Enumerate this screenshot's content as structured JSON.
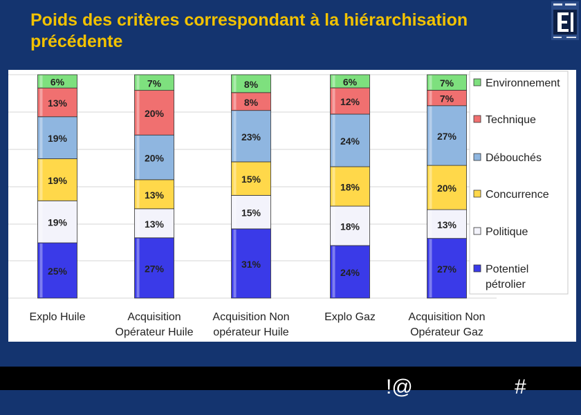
{
  "slide": {
    "title": "Poids des critères correspondant à la hiérarchisation précédente",
    "footer_left": "!@",
    "footer_right": "#"
  },
  "colors": {
    "background": "#14346f",
    "title": "#f2c200",
    "footer_bar": "#000000"
  },
  "chart_data": {
    "type": "bar",
    "stacked": true,
    "categories": [
      [
        "Explo Huile"
      ],
      [
        "Acquisition",
        "Opérateur Huile"
      ],
      [
        "Acquisition Non",
        "opérateur Huile"
      ],
      [
        "Explo Gaz"
      ],
      [
        "Acquisition Non",
        "Opérateur Gaz"
      ]
    ],
    "series": [
      {
        "name": "Potentiel pétrolier",
        "values": [
          25,
          27,
          31,
          24,
          27
        ],
        "color": "#3a3ae8"
      },
      {
        "name": "Politique",
        "values": [
          19,
          13,
          15,
          18,
          13
        ],
        "color": "#f3f3fb"
      },
      {
        "name": "Concurrence",
        "values": [
          19,
          13,
          15,
          18,
          20
        ],
        "color": "#ffd84a"
      },
      {
        "name": "Débouchés",
        "values": [
          19,
          20,
          23,
          24,
          27
        ],
        "color": "#8fb6e0"
      },
      {
        "name": "Technique",
        "values": [
          13,
          20,
          8,
          12,
          7
        ],
        "color": "#f07070"
      },
      {
        "name": "Environnement",
        "values": [
          6,
          7,
          8,
          6,
          7
        ],
        "color": "#7ee07e"
      }
    ],
    "legend_order": [
      "Environnement",
      "Technique",
      "Débouchés",
      "Concurrence",
      "Politique",
      "Potentiel pétrolier"
    ],
    "value_suffix": "%",
    "legend_position": "right",
    "grid": true
  }
}
